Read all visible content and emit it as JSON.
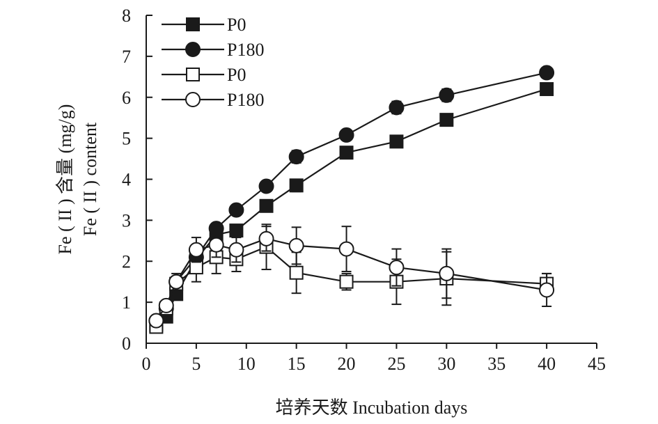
{
  "chart_data": {
    "type": "line",
    "title": "",
    "xlabel": "培养天数 Incubation days",
    "ylabel_lines": [
      "Fe ( II ) 含量 (mg/g)",
      "Fe ( II ) content"
    ],
    "xlim": [
      0,
      45
    ],
    "ylim": [
      0,
      8
    ],
    "xticks": [
      0,
      5,
      10,
      15,
      20,
      25,
      30,
      35,
      40,
      45
    ],
    "yticks": [
      0,
      1,
      2,
      3,
      4,
      5,
      6,
      7,
      8
    ],
    "grid": false,
    "legend_position": "top-left",
    "series": [
      {
        "name": "P0",
        "marker": "square",
        "fill": "filled",
        "color": "#1a1a1a",
        "x": [
          1,
          2,
          3,
          5,
          7,
          9,
          12,
          15,
          20,
          25,
          30,
          40
        ],
        "y": [
          0.45,
          0.65,
          1.2,
          2.05,
          2.65,
          2.75,
          3.35,
          3.85,
          4.65,
          4.92,
          5.45,
          6.2
        ],
        "err": [
          0.05,
          0.06,
          0.08,
          0.1,
          0.1,
          0.12,
          0.12,
          0.15,
          0.1,
          0.1,
          0.1,
          0.1
        ]
      },
      {
        "name": "P180",
        "marker": "circle",
        "fill": "filled",
        "color": "#1a1a1a",
        "x": [
          1,
          2,
          3,
          5,
          7,
          9,
          12,
          15,
          20,
          25,
          30,
          40
        ],
        "y": [
          0.55,
          0.85,
          1.5,
          2.1,
          2.8,
          3.25,
          3.83,
          4.55,
          5.08,
          5.75,
          6.05,
          6.6
        ],
        "err": [
          0.05,
          0.06,
          0.08,
          0.1,
          0.12,
          0.12,
          0.12,
          0.15,
          0.12,
          0.15,
          0.15,
          0.1
        ]
      },
      {
        "name": "P0",
        "marker": "square",
        "fill": "open",
        "color": "#1a1a1a",
        "x": [
          1,
          2,
          3,
          5,
          7,
          9,
          12,
          15,
          20,
          25,
          30,
          40
        ],
        "y": [
          0.4,
          0.85,
          1.45,
          1.85,
          2.1,
          2.05,
          2.35,
          1.72,
          1.5,
          1.5,
          1.58,
          1.45
        ],
        "err": [
          0.05,
          0.08,
          0.15,
          0.35,
          0.4,
          0.3,
          0.55,
          0.5,
          0.2,
          0.55,
          0.65,
          0.25
        ]
      },
      {
        "name": "P180",
        "marker": "circle",
        "fill": "open",
        "color": "#1a1a1a",
        "x": [
          1,
          2,
          3,
          5,
          7,
          9,
          12,
          15,
          20,
          25,
          30,
          40
        ],
        "y": [
          0.55,
          0.92,
          1.5,
          2.28,
          2.4,
          2.28,
          2.55,
          2.38,
          2.3,
          1.85,
          1.7,
          1.3
        ],
        "err": [
          0.05,
          0.1,
          0.2,
          0.3,
          0.3,
          0.3,
          0.3,
          0.45,
          0.55,
          0.45,
          0.6,
          0.4
        ]
      }
    ]
  }
}
